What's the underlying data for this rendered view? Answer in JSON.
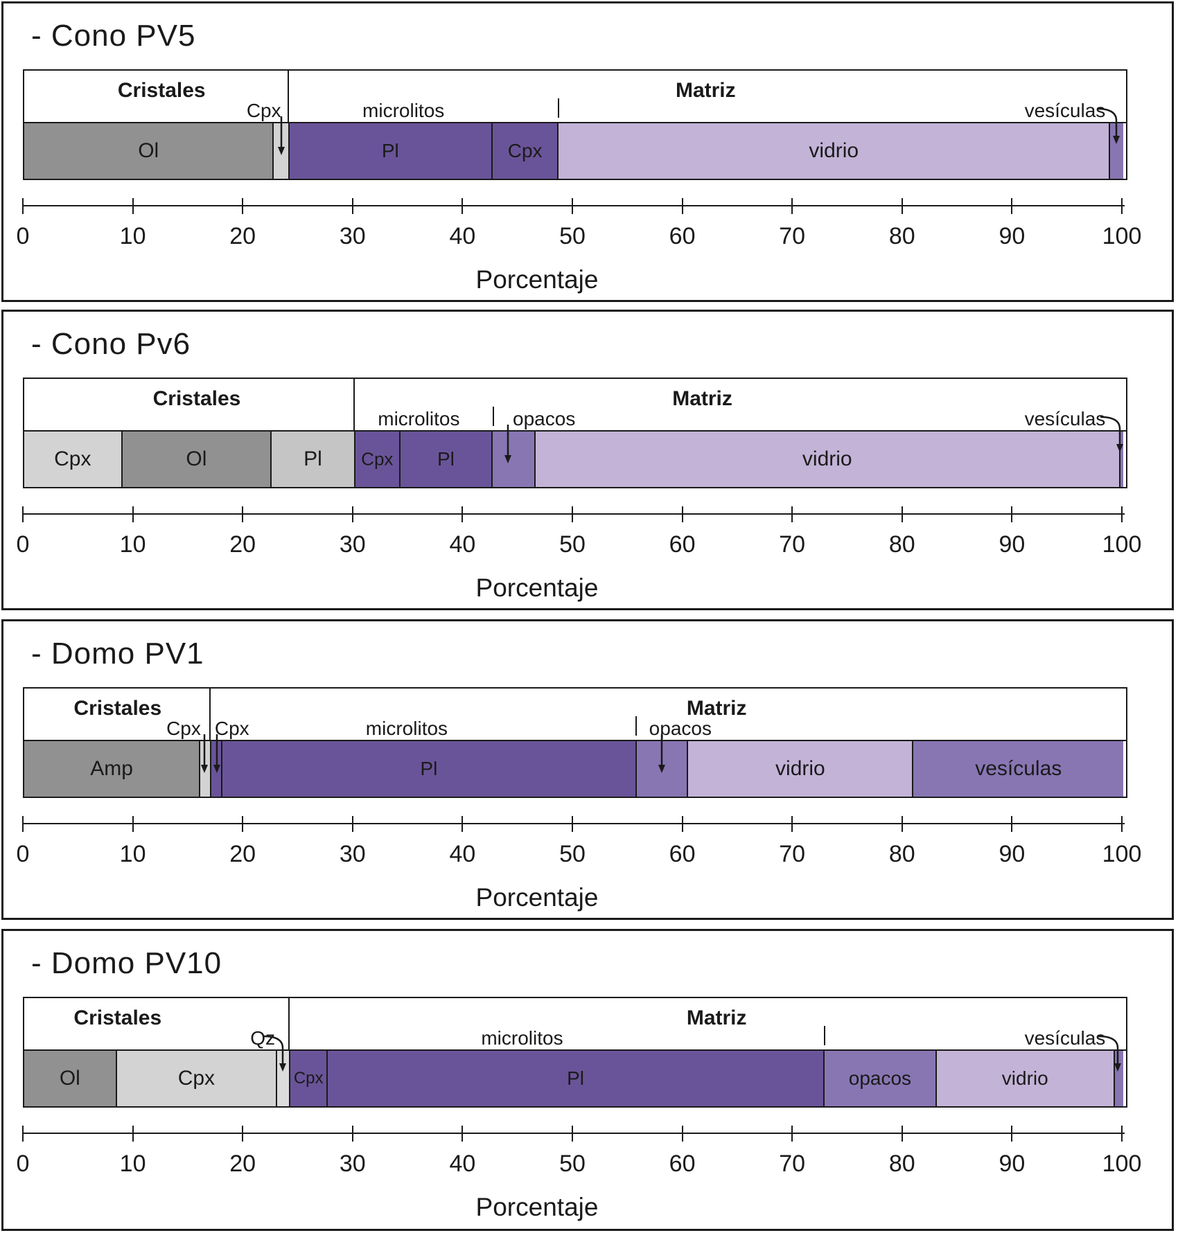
{
  "colors": {
    "border": "#1a1a1a",
    "text": "#1a1a1a",
    "gray_dark": "#919191",
    "gray_light": "#d3d3d3",
    "gray_mid": "#c5c5c5",
    "gray_pale": "#dcdcdc",
    "purple_dark": "#6a5499",
    "purple_mid": "#8876b3",
    "purple_light": "#c3b3d7"
  },
  "axis": {
    "xlabel": "Porcentaje",
    "min": 0,
    "max": 100,
    "ticks": [
      0,
      10,
      20,
      30,
      40,
      50,
      60,
      70,
      80,
      90,
      100
    ],
    "tick_labels": [
      "0",
      "10",
      "20",
      "30",
      "40",
      "50",
      "60",
      "70",
      "80",
      "90",
      "100"
    ]
  },
  "panels": [
    {
      "title": "- Cono PV5",
      "segments": [
        {
          "name": "Ol",
          "start": 0,
          "end": 22.6,
          "color": "gray_dark",
          "bar_label": "Ol",
          "label_size": 30
        },
        {
          "name": "Cpx",
          "start": 22.6,
          "end": 24.0,
          "color": "gray_light",
          "bar_label": "",
          "label_size": 0
        },
        {
          "name": "Pl",
          "start": 24.0,
          "end": 42.5,
          "color": "purple_dark",
          "bar_label": "Pl",
          "label_size": 28
        },
        {
          "name": "Cpx",
          "start": 42.5,
          "end": 48.5,
          "color": "purple_dark",
          "bar_label": "Cpx",
          "label_size": 28
        },
        {
          "name": "vidrio",
          "start": 48.5,
          "end": 98.7,
          "color": "purple_light",
          "bar_label": "vidrio",
          "label_size": 30
        },
        {
          "name": "vesiculas",
          "start": 98.7,
          "end": 100,
          "color": "purple_mid",
          "bar_label": "",
          "label_size": 0
        }
      ],
      "top_labels": [
        {
          "text": "Cristales",
          "x": 12.5,
          "row": 1
        },
        {
          "text": "Cpx",
          "x": 21.8,
          "row": 2
        },
        {
          "text": "microlitos",
          "x": 34.5,
          "row": 2
        },
        {
          "text": "Matriz",
          "x": 62.0,
          "row": 1
        },
        {
          "text": "vesículas",
          "x": 94.7,
          "row": 2
        }
      ],
      "dividers": [
        24.0
      ],
      "tick_marks": [
        48.6
      ],
      "arrows": [
        {
          "type": "straight",
          "tip": 23.4
        },
        {
          "type": "curved",
          "tip": 99.35
        }
      ]
    },
    {
      "title": "- Cono Pv6",
      "segments": [
        {
          "name": "Cpx",
          "start": 0,
          "end": 8.8,
          "color": "gray_light",
          "bar_label": "Cpx",
          "label_size": 30
        },
        {
          "name": "Ol",
          "start": 8.8,
          "end": 22.4,
          "color": "gray_dark",
          "bar_label": "Ol",
          "label_size": 30
        },
        {
          "name": "Pl",
          "start": 22.4,
          "end": 30.0,
          "color": "gray_mid",
          "bar_label": "Pl",
          "label_size": 30
        },
        {
          "name": "Cpx",
          "start": 30.0,
          "end": 34.1,
          "color": "purple_dark",
          "bar_label": "Cpx",
          "label_size": 26
        },
        {
          "name": "Pl",
          "start": 34.1,
          "end": 42.5,
          "color": "purple_dark",
          "bar_label": "Pl",
          "label_size": 28
        },
        {
          "name": "opacos",
          "start": 42.5,
          "end": 46.4,
          "color": "purple_mid",
          "bar_label": "",
          "label_size": 0
        },
        {
          "name": "vidrio",
          "start": 46.4,
          "end": 99.6,
          "color": "purple_light",
          "bar_label": "vidrio",
          "label_size": 30
        },
        {
          "name": "vesiculas",
          "start": 99.6,
          "end": 100,
          "color": "purple_mid",
          "bar_label": "",
          "label_size": 0
        }
      ],
      "top_labels": [
        {
          "text": "Cristales",
          "x": 15.7,
          "row": 1
        },
        {
          "text": "microlitos",
          "x": 35.9,
          "row": 2
        },
        {
          "text": "opacos",
          "x": 47.3,
          "row": 2
        },
        {
          "text": "Matriz",
          "x": 61.7,
          "row": 1
        },
        {
          "text": "vesículas",
          "x": 94.7,
          "row": 2
        }
      ],
      "dividers": [
        30.0
      ],
      "tick_marks": [
        42.7
      ],
      "arrows": [
        {
          "type": "straight",
          "tip": 44.0
        },
        {
          "type": "curved",
          "tip": 99.7
        }
      ]
    },
    {
      "title": "- Domo PV1",
      "segments": [
        {
          "name": "Amp",
          "start": 0,
          "end": 15.9,
          "color": "gray_dark",
          "bar_label": "Amp",
          "label_size": 30
        },
        {
          "name": "Cpx",
          "start": 15.9,
          "end": 16.9,
          "color": "gray_light",
          "bar_label": "",
          "label_size": 0
        },
        {
          "name": "Cpx",
          "start": 16.9,
          "end": 17.9,
          "color": "purple_dark",
          "bar_label": "",
          "label_size": 0
        },
        {
          "name": "Pl",
          "start": 17.9,
          "end": 55.6,
          "color": "purple_dark",
          "bar_label": "Pl",
          "label_size": 28
        },
        {
          "name": "opacos",
          "start": 55.6,
          "end": 60.3,
          "color": "purple_mid",
          "bar_label": "",
          "label_size": 0
        },
        {
          "name": "vidrio",
          "start": 60.3,
          "end": 80.8,
          "color": "purple_light",
          "bar_label": "vidrio",
          "label_size": 30
        },
        {
          "name": "vesiculas",
          "start": 80.8,
          "end": 100,
          "color": "purple_mid",
          "bar_label": "vesículas",
          "label_size": 30
        }
      ],
      "top_labels": [
        {
          "text": "Cristales",
          "x": 8.5,
          "row": 1
        },
        {
          "text": "Cpx",
          "x": 14.5,
          "row": 2
        },
        {
          "text": "Cpx",
          "x": 18.9,
          "row": 2
        },
        {
          "text": "microlitos",
          "x": 34.8,
          "row": 2
        },
        {
          "text": "opacos",
          "x": 59.7,
          "row": 2
        },
        {
          "text": "Matriz",
          "x": 63.0,
          "row": 1
        }
      ],
      "dividers": [
        16.9
      ],
      "tick_marks": [
        55.7
      ],
      "arrows": [
        {
          "type": "straight",
          "tip": 16.4
        },
        {
          "type": "straight",
          "tip": 17.5
        },
        {
          "type": "straight",
          "tip": 58.0
        }
      ]
    },
    {
      "title": "- Domo PV10",
      "segments": [
        {
          "name": "Ol",
          "start": 0,
          "end": 8.3,
          "color": "gray_dark",
          "bar_label": "Ol",
          "label_size": 30
        },
        {
          "name": "Cpx",
          "start": 8.3,
          "end": 22.9,
          "color": "gray_light",
          "bar_label": "Cpx",
          "label_size": 30
        },
        {
          "name": "Qz",
          "start": 22.9,
          "end": 24.1,
          "color": "gray_pale",
          "bar_label": "",
          "label_size": 0
        },
        {
          "name": "Cpx",
          "start": 24.1,
          "end": 27.5,
          "color": "purple_dark",
          "bar_label": "Cpx",
          "label_size": 24
        },
        {
          "name": "Pl",
          "start": 27.5,
          "end": 72.7,
          "color": "purple_dark",
          "bar_label": "Pl",
          "label_size": 28
        },
        {
          "name": "opacos",
          "start": 72.7,
          "end": 82.9,
          "color": "purple_mid",
          "bar_label": "opacos",
          "label_size": 28
        },
        {
          "name": "vidrio",
          "start": 82.9,
          "end": 99.1,
          "color": "purple_light",
          "bar_label": "vidrio",
          "label_size": 28
        },
        {
          "name": "vesiculas",
          "start": 99.1,
          "end": 100,
          "color": "purple_mid",
          "bar_label": "",
          "label_size": 0
        }
      ],
      "top_labels": [
        {
          "text": "Cristales",
          "x": 8.5,
          "row": 1
        },
        {
          "text": "Qz",
          "x": 21.7,
          "row": 2
        },
        {
          "text": "microlitos",
          "x": 45.3,
          "row": 2
        },
        {
          "text": "Matriz",
          "x": 63.0,
          "row": 1
        },
        {
          "text": "vesículas",
          "x": 94.7,
          "row": 2
        }
      ],
      "dividers": [
        24.1
      ],
      "tick_marks": [
        72.8
      ],
      "arrows": [
        {
          "type": "curved",
          "tip": 23.5
        },
        {
          "type": "curved",
          "tip": 99.5
        }
      ]
    }
  ],
  "chart_data": [
    {
      "type": "bar",
      "title": "- Cono PV5",
      "orientation": "horizontal-stacked",
      "xlabel": "Porcentaje",
      "xlim": [
        0,
        100
      ],
      "grid": false,
      "series": [
        {
          "name": "Ol",
          "group": "Cristales",
          "value": 22.6
        },
        {
          "name": "Cpx",
          "group": "Cristales",
          "value": 1.4
        },
        {
          "name": "Pl",
          "group": "microlitos",
          "value": 18.5
        },
        {
          "name": "Cpx",
          "group": "microlitos",
          "value": 6.0
        },
        {
          "name": "vidrio",
          "group": "Matriz",
          "value": 50.2
        },
        {
          "name": "vesículas",
          "group": "Matriz",
          "value": 1.3
        }
      ]
    },
    {
      "type": "bar",
      "title": "- Cono Pv6",
      "orientation": "horizontal-stacked",
      "xlabel": "Porcentaje",
      "xlim": [
        0,
        100
      ],
      "grid": false,
      "series": [
        {
          "name": "Cpx",
          "group": "Cristales",
          "value": 8.8
        },
        {
          "name": "Ol",
          "group": "Cristales",
          "value": 13.6
        },
        {
          "name": "Pl",
          "group": "Cristales",
          "value": 7.6
        },
        {
          "name": "Cpx",
          "group": "microlitos",
          "value": 4.1
        },
        {
          "name": "Pl",
          "group": "microlitos",
          "value": 8.4
        },
        {
          "name": "opacos",
          "group": "Matriz",
          "value": 3.9
        },
        {
          "name": "vidrio",
          "group": "Matriz",
          "value": 53.2
        },
        {
          "name": "vesículas",
          "group": "Matriz",
          "value": 0.4
        }
      ]
    },
    {
      "type": "bar",
      "title": "- Domo PV1",
      "orientation": "horizontal-stacked",
      "xlabel": "Porcentaje",
      "xlim": [
        0,
        100
      ],
      "grid": false,
      "series": [
        {
          "name": "Amp",
          "group": "Cristales",
          "value": 15.9
        },
        {
          "name": "Cpx",
          "group": "Cristales",
          "value": 1.0
        },
        {
          "name": "Cpx",
          "group": "microlitos",
          "value": 1.0
        },
        {
          "name": "Pl",
          "group": "microlitos",
          "value": 37.7
        },
        {
          "name": "opacos",
          "group": "Matriz",
          "value": 4.7
        },
        {
          "name": "vidrio",
          "group": "Matriz",
          "value": 20.5
        },
        {
          "name": "vesículas",
          "group": "Matriz",
          "value": 19.2
        }
      ]
    },
    {
      "type": "bar",
      "title": "- Domo PV10",
      "orientation": "horizontal-stacked",
      "xlabel": "Porcentaje",
      "xlim": [
        0,
        100
      ],
      "grid": false,
      "series": [
        {
          "name": "Ol",
          "group": "Cristales",
          "value": 8.3
        },
        {
          "name": "Cpx",
          "group": "Cristales",
          "value": 14.6
        },
        {
          "name": "Qz",
          "group": "Cristales",
          "value": 1.2
        },
        {
          "name": "Cpx",
          "group": "microlitos",
          "value": 3.4
        },
        {
          "name": "Pl",
          "group": "microlitos",
          "value": 45.2
        },
        {
          "name": "opacos",
          "group": "Matriz",
          "value": 10.2
        },
        {
          "name": "vidrio",
          "group": "Matriz",
          "value": 16.2
        },
        {
          "name": "vesículas",
          "group": "Matriz",
          "value": 0.9
        }
      ]
    }
  ]
}
